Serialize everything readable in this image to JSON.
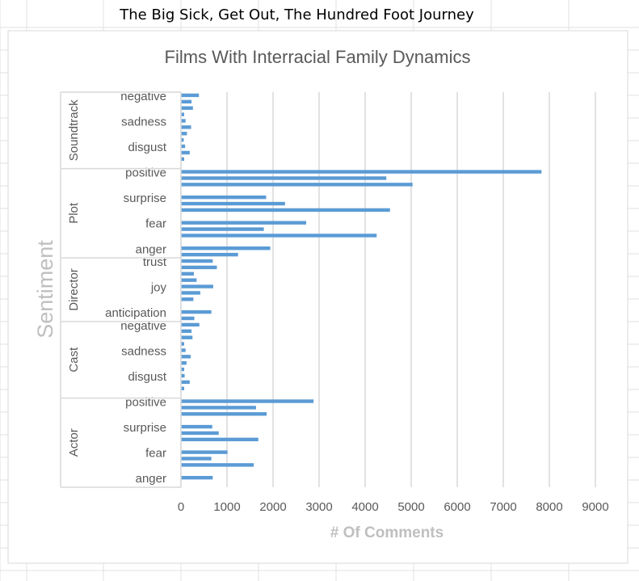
{
  "header_text": "The Big Sick, Get Out, The Hundred Foot Journey",
  "colors": {
    "bar": "#5b9bd5",
    "grid": "#d9d9d9",
    "axis_title": "#bfbfbf",
    "title": "#595959",
    "label": "#595959",
    "sheet_grid": "#e0e0e0"
  },
  "chart_data": {
    "type": "bar",
    "orientation": "horizontal",
    "title": "Films With Interracial Family Dynamics",
    "xlabel": "# Of Comments",
    "ylabel": "Sentiment",
    "xlim": [
      0,
      9000
    ],
    "xticks": [
      0,
      1000,
      2000,
      3000,
      4000,
      5000,
      6000,
      7000,
      8000,
      9000
    ],
    "grid": true,
    "legend": "none",
    "groups": [
      {
        "name": "Soundtrack",
        "rows": [
          {
            "label": "negative",
            "values": [
              390,
              230
            ]
          },
          {
            "label": "",
            "values": [
              260,
              70
            ]
          },
          {
            "label": "sadness",
            "values": [
              100,
              220
            ]
          },
          {
            "label": "",
            "values": [
              130,
              60
            ]
          },
          {
            "label": "disgust",
            "values": [
              90,
              190
            ]
          },
          {
            "label": "",
            "values": [
              70
            ]
          }
        ]
      },
      {
        "name": "Plot",
        "rows": [
          {
            "label": "positive",
            "values": [
              7830,
              4460
            ]
          },
          {
            "label": "",
            "values": [
              5030
            ]
          },
          {
            "label": "surprise",
            "values": [
              1850,
              2260
            ]
          },
          {
            "label": "",
            "values": [
              4540
            ]
          },
          {
            "label": "fear",
            "values": [
              2720,
              1800
            ]
          },
          {
            "label": "",
            "values": [
              4250
            ]
          },
          {
            "label": "anger",
            "values": [
              1940,
              1240
            ]
          }
        ]
      },
      {
        "name": "Director",
        "rows": [
          {
            "label": "trust",
            "values": [
              690,
              780
            ]
          },
          {
            "label": "",
            "values": [
              280,
              340
            ]
          },
          {
            "label": "joy",
            "values": [
              700,
              420
            ]
          },
          {
            "label": "",
            "values": [
              270
            ]
          },
          {
            "label": "anticipation",
            "values": [
              660,
              290
            ]
          }
        ]
      },
      {
        "name": "Cast",
        "rows": [
          {
            "label": "negative",
            "values": [
              400,
              230
            ]
          },
          {
            "label": "",
            "values": [
              250,
              70
            ]
          },
          {
            "label": "sadness",
            "values": [
              100,
              210
            ]
          },
          {
            "label": "",
            "values": [
              120,
              70
            ]
          },
          {
            "label": "disgust",
            "values": [
              80,
              190
            ]
          },
          {
            "label": "",
            "values": [
              70
            ]
          }
        ]
      },
      {
        "name": "Actor",
        "rows": [
          {
            "label": "positive",
            "values": [
              2880,
              1630
            ]
          },
          {
            "label": "",
            "values": [
              1860
            ]
          },
          {
            "label": "surprise",
            "values": [
              680,
              820
            ]
          },
          {
            "label": "",
            "values": [
              1680
            ]
          },
          {
            "label": "fear",
            "values": [
              1010,
              660
            ]
          },
          {
            "label": "",
            "values": [
              1580
            ]
          },
          {
            "label": "anger",
            "values": [
              690
            ]
          }
        ]
      }
    ]
  }
}
